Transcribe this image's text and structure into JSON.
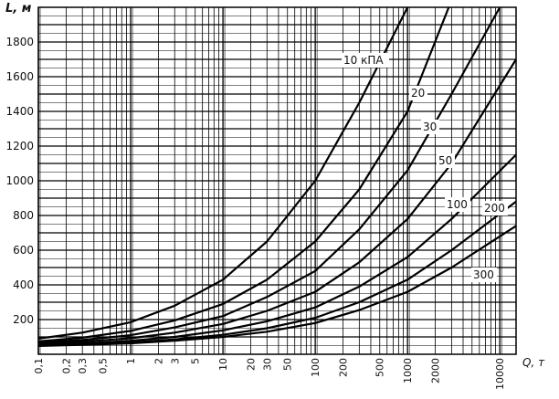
{
  "chart_data": {
    "type": "line",
    "title": "",
    "ylabel": "L, м",
    "xlabel": "Q, т",
    "xscale": "log",
    "xlim": [
      0.1,
      15000
    ],
    "ylim": [
      0,
      2000
    ],
    "grid": true,
    "yticks": [
      200,
      400,
      600,
      800,
      1000,
      1200,
      1400,
      1600,
      1800
    ],
    "xticks": [
      {
        "value": 0.1,
        "label": "0,1"
      },
      {
        "value": 0.2,
        "label": "0,2"
      },
      {
        "value": 0.3,
        "label": "0,3"
      },
      {
        "value": 0.5,
        "label": "0,5"
      },
      {
        "value": 1,
        "label": "1"
      },
      {
        "value": 2,
        "label": "2"
      },
      {
        "value": 3,
        "label": "3"
      },
      {
        "value": 5,
        "label": "5"
      },
      {
        "value": 10,
        "label": "10"
      },
      {
        "value": 20,
        "label": "20"
      },
      {
        "value": 30,
        "label": "30"
      },
      {
        "value": 50,
        "label": "50"
      },
      {
        "value": 100,
        "label": "100"
      },
      {
        "value": 200,
        "label": "200"
      },
      {
        "value": 500,
        "label": "500"
      },
      {
        "value": 1000,
        "label": "1000"
      },
      {
        "value": 2000,
        "label": "2000"
      },
      {
        "value": 10000,
        "label": "10000"
      }
    ],
    "series": [
      {
        "name": "10 кПА",
        "x": [
          0.1,
          0.3,
          1,
          3,
          10,
          30,
          100,
          300,
          1000
        ],
        "y": [
          90,
          125,
          185,
          280,
          430,
          650,
          1000,
          1450,
          2000
        ]
      },
      {
        "name": "20",
        "x": [
          0.1,
          0.3,
          1,
          3,
          10,
          30,
          100,
          300,
          1000,
          2800
        ],
        "y": [
          75,
          95,
          135,
          195,
          290,
          430,
          650,
          950,
          1400,
          2000
        ]
      },
      {
        "name": "30",
        "x": [
          0.1,
          0.3,
          1,
          3,
          10,
          30,
          100,
          300,
          1000,
          3000,
          10000
        ],
        "y": [
          68,
          82,
          110,
          155,
          220,
          330,
          480,
          720,
          1060,
          1500,
          2000
        ]
      },
      {
        "name": "50",
        "x": [
          0.1,
          0.3,
          1,
          3,
          10,
          30,
          100,
          300,
          1000,
          3000,
          15000
        ],
        "y": [
          60,
          72,
          92,
          125,
          175,
          250,
          360,
          530,
          780,
          1100,
          1700
        ]
      },
      {
        "name": "100",
        "x": [
          0.1,
          0.3,
          1,
          3,
          10,
          30,
          100,
          300,
          1000,
          3000,
          15000
        ],
        "y": [
          54,
          62,
          78,
          100,
          138,
          190,
          270,
          390,
          560,
          780,
          1150
        ]
      },
      {
        "name": "200",
        "x": [
          0.1,
          0.3,
          1,
          3,
          10,
          30,
          100,
          300,
          1000,
          3000,
          15000
        ],
        "y": [
          50,
          57,
          68,
          86,
          112,
          150,
          210,
          300,
          430,
          600,
          880
        ]
      },
      {
        "name": "300",
        "x": [
          0.1,
          0.3,
          1,
          3,
          10,
          30,
          100,
          300,
          1000,
          3000,
          15000
        ],
        "y": [
          48,
          54,
          63,
          78,
          100,
          130,
          180,
          255,
          360,
          500,
          740
        ]
      }
    ]
  }
}
